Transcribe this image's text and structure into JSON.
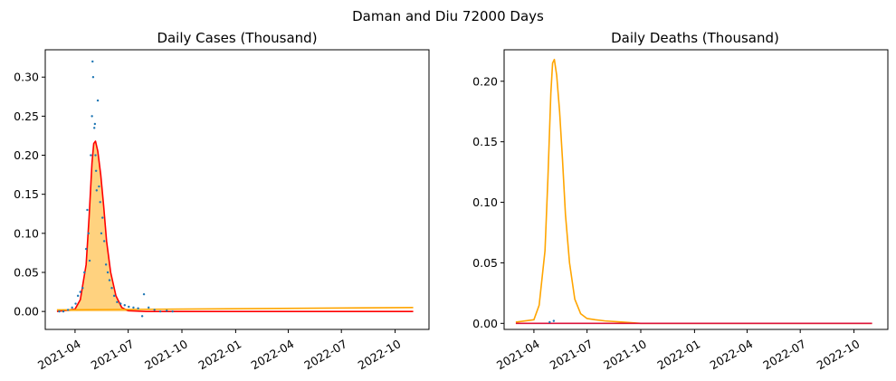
{
  "suptitle": "Daman and Diu 72000 Days",
  "colors": {
    "cases_fit": "#ff0000",
    "deaths_fit": "#ffa500",
    "band": "#ffa500",
    "points": "#1f77b4",
    "baseline_deaths": "#dc143c"
  },
  "chart_data": [
    {
      "type": "line",
      "title": "Daily Cases (Thousand)",
      "xlabel": "",
      "ylabel": "",
      "x_ticks": [
        "2021-04",
        "2021-07",
        "2021-10",
        "2022-01",
        "2022-04",
        "2022-07",
        "2022-10"
      ],
      "y_ticks": [
        "0.00",
        "0.05",
        "0.10",
        "0.15",
        "0.20",
        "0.25",
        "0.30"
      ],
      "xlim": [
        "2021-02-09",
        "2022-11-28"
      ],
      "ylim": [
        -0.023,
        0.335
      ],
      "grid": false,
      "series": [
        {
          "kind": "line",
          "color": "#ff0000",
          "x": [
            "2021-03-01",
            "2021-04-01",
            "2021-04-10",
            "2021-04-20",
            "2021-04-25",
            "2021-04-30",
            "2021-05-03",
            "2021-05-06",
            "2021-05-10",
            "2021-05-15",
            "2021-05-20",
            "2021-05-25",
            "2021-06-01",
            "2021-06-10",
            "2021-06-20",
            "2021-07-01",
            "2021-08-01",
            "2022-11-01"
          ],
          "values": [
            0.0,
            0.003,
            0.015,
            0.06,
            0.12,
            0.19,
            0.215,
            0.218,
            0.205,
            0.175,
            0.135,
            0.09,
            0.05,
            0.02,
            0.005,
            0.001,
            0.0,
            0.0
          ]
        },
        {
          "kind": "line",
          "color": "#ffa500",
          "x": [
            "2021-03-01",
            "2022-11-01"
          ],
          "values": [
            0.002,
            0.005
          ]
        },
        {
          "kind": "area",
          "color": "#ffa500",
          "alpha": 0.5,
          "x": [
            "2021-03-01",
            "2021-04-01",
            "2021-04-10",
            "2021-04-20",
            "2021-04-25",
            "2021-04-30",
            "2021-05-03",
            "2021-05-06",
            "2021-05-10",
            "2021-05-15",
            "2021-05-20",
            "2021-05-25",
            "2021-06-01",
            "2021-06-10",
            "2021-06-20",
            "2021-07-01",
            "2021-08-01",
            "2022-11-01"
          ],
          "values": [
            0.0,
            0.003,
            0.015,
            0.06,
            0.12,
            0.19,
            0.215,
            0.218,
            0.205,
            0.175,
            0.135,
            0.09,
            0.05,
            0.02,
            0.005,
            0.001,
            0.0,
            0.0
          ]
        },
        {
          "kind": "scatter",
          "color": "#1f77b4",
          "x": [
            "2021-03-05",
            "2021-03-12",
            "2021-03-20",
            "2021-03-27",
            "2021-04-02",
            "2021-04-06",
            "2021-04-10",
            "2021-04-14",
            "2021-04-17",
            "2021-04-20",
            "2021-04-22",
            "2021-04-24",
            "2021-04-26",
            "2021-04-28",
            "2021-04-30",
            "2021-05-01",
            "2021-05-02",
            "2021-05-04",
            "2021-05-05",
            "2021-05-06",
            "2021-05-07",
            "2021-05-08",
            "2021-05-10",
            "2021-05-12",
            "2021-05-14",
            "2021-05-16",
            "2021-05-18",
            "2021-05-21",
            "2021-05-24",
            "2021-05-27",
            "2021-05-30",
            "2021-06-03",
            "2021-06-07",
            "2021-06-12",
            "2021-06-18",
            "2021-06-25",
            "2021-07-02",
            "2021-07-10",
            "2021-07-18",
            "2021-07-25",
            "2021-07-28",
            "2021-08-05",
            "2021-08-15",
            "2021-08-25",
            "2021-09-05",
            "2021-09-15"
          ],
          "values": [
            0.0,
            0.0,
            0.002,
            0.005,
            0.01,
            0.02,
            0.025,
            0.03,
            0.05,
            0.08,
            0.13,
            0.1,
            0.065,
            0.2,
            0.25,
            0.32,
            0.3,
            0.235,
            0.24,
            0.2,
            0.18,
            0.155,
            0.27,
            0.16,
            0.14,
            0.1,
            0.12,
            0.09,
            0.06,
            0.05,
            0.04,
            0.03,
            0.02,
            0.012,
            0.01,
            0.008,
            0.006,
            0.005,
            0.004,
            -0.006,
            0.022,
            0.005,
            0.002,
            0.0,
            0.001,
            0.0
          ]
        }
      ]
    },
    {
      "type": "line",
      "title": "Daily Deaths (Thousand)",
      "xlabel": "",
      "ylabel": "",
      "x_ticks": [
        "2021-04",
        "2021-07",
        "2021-10",
        "2022-01",
        "2022-04",
        "2022-07",
        "2022-10"
      ],
      "y_ticks": [
        "0.00",
        "0.05",
        "0.10",
        "0.15",
        "0.20"
      ],
      "xlim": [
        "2021-02-09",
        "2022-11-28"
      ],
      "ylim": [
        -0.005,
        0.226
      ],
      "grid": false,
      "series": [
        {
          "kind": "line",
          "color": "#ffa500",
          "x": [
            "2021-03-01",
            "2021-04-01",
            "2021-04-10",
            "2021-04-20",
            "2021-04-25",
            "2021-04-30",
            "2021-05-03",
            "2021-05-06",
            "2021-05-10",
            "2021-05-15",
            "2021-05-20",
            "2021-05-25",
            "2021-06-01",
            "2021-06-10",
            "2021-06-20",
            "2021-07-01",
            "2021-07-15",
            "2021-08-01",
            "2021-09-01",
            "2021-10-01",
            "2022-11-01"
          ],
          "values": [
            0.001,
            0.003,
            0.015,
            0.06,
            0.12,
            0.19,
            0.215,
            0.218,
            0.205,
            0.175,
            0.135,
            0.09,
            0.05,
            0.02,
            0.008,
            0.004,
            0.003,
            0.002,
            0.001,
            0.0,
            0.0
          ]
        },
        {
          "kind": "line",
          "color": "#dc143c",
          "x": [
            "2021-03-01",
            "2022-11-01"
          ],
          "values": [
            0.0,
            0.0
          ]
        },
        {
          "kind": "scatter",
          "color": "#1f77b4",
          "x": [
            "2021-04-28",
            "2021-05-05"
          ],
          "values": [
            0.001,
            0.002
          ]
        }
      ]
    }
  ]
}
